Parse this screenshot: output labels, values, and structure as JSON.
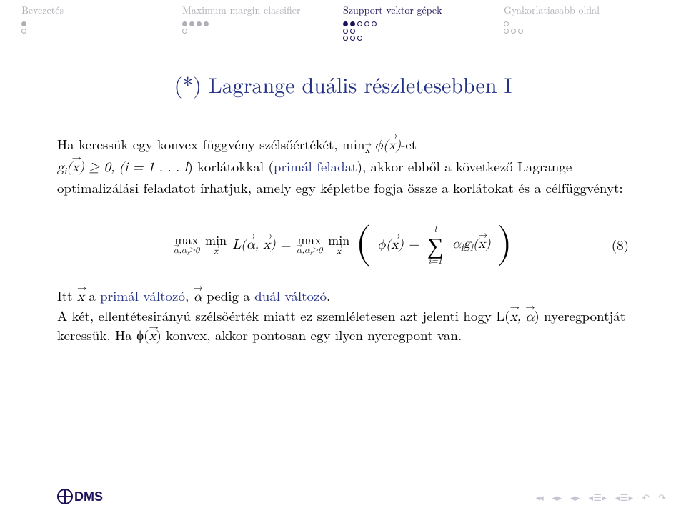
{
  "sections": {
    "s1": "Bevezetés",
    "s2": "Maximum margin classifier",
    "s3": "Szupport vektor gépek",
    "s4": "Gyakorlatiasabb oldal"
  },
  "title": "(*) Lagrange duális részletesebben I",
  "p1a": "Ha keressük egy konvex függvény szélsőértékét, min",
  "p1b": "-et",
  "p2a": ") korlátokkal (",
  "p2b": "primál feladat",
  "p2c": "), akkor ebből a következő Lagrange optimalizálási feladatot írhatjuk, amely egy képletbe fogja össze a korlátokat és a célfüggvényt:",
  "constraint": " ≥ 0, (i = 1 . . . l",
  "eq_num": "(8)",
  "p3a": "Itt ",
  "p3b": " a ",
  "p3c": "primál változó",
  "p3d": ", ",
  "p3e": " pedig a ",
  "p3f": "duál változó",
  "p3g": ".",
  "p4a": "A két, ellentétesirányú szélsőérték miatt ez szemléletesen azt jelenti hogy L(",
  "p4b": ") nyeregpontját keressük. Ha ϕ(",
  "p4c": ") konvex, akkor pontosan egy ilyen nyeregpont van.",
  "logo_text": "DMS",
  "colors": {
    "accent": "#233187",
    "muted": "#b0aeb6",
    "nav_dark": "#1c1259"
  }
}
